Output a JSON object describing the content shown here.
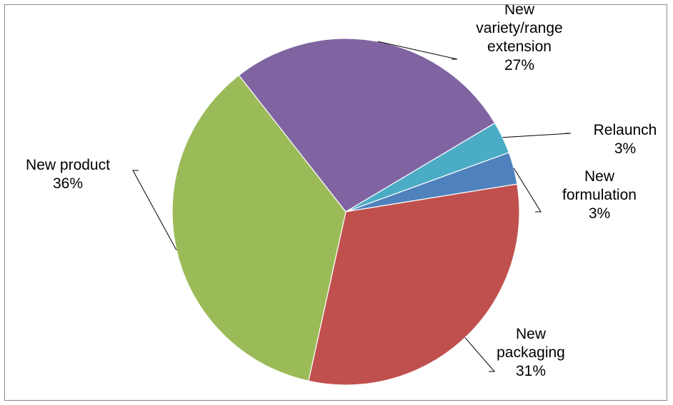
{
  "chart_data": {
    "type": "pie",
    "title": "",
    "slices": [
      {
        "label": "New formulation",
        "lines": [
          "New",
          "formulation"
        ],
        "value": 3,
        "display": "3%",
        "color": "#4f81bd"
      },
      {
        "label": "New packaging",
        "lines": [
          "New",
          "packaging"
        ],
        "value": 31,
        "display": "31%",
        "color": "#c0504d"
      },
      {
        "label": "New product",
        "lines": [
          "New product"
        ],
        "value": 36,
        "display": "36%",
        "color": "#9bbb59"
      },
      {
        "label": "New variety/range extension",
        "lines": [
          "New",
          "variety/range",
          "extension"
        ],
        "value": 27,
        "display": "27%",
        "color": "#8064a2"
      },
      {
        "label": "Relaunch",
        "lines": [
          "Relaunch"
        ],
        "value": 3,
        "display": "3%",
        "color": "#4bacc6"
      }
    ],
    "legend": "none",
    "data_labels": "outside-with-leader-lines"
  }
}
